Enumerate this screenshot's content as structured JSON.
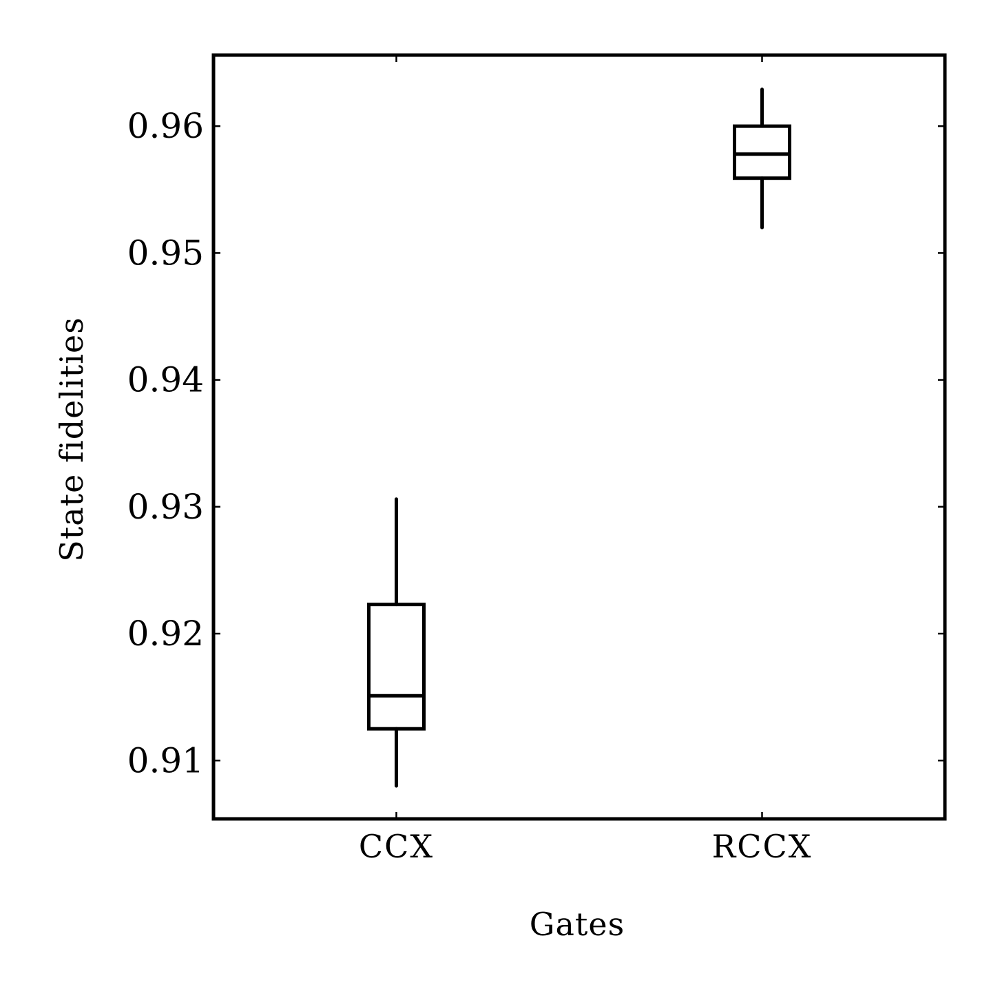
{
  "chart_data": {
    "type": "boxplot",
    "title": "",
    "xlabel": "Gates",
    "ylabel": "State fidelities",
    "categories": [
      "CCX",
      "RCCX"
    ],
    "boxes": [
      {
        "category": "CCX",
        "whisker_low": 0.908,
        "q1": 0.9125,
        "median": 0.9151,
        "q3": 0.9223,
        "whisker_high": 0.9306
      },
      {
        "category": "RCCX",
        "whisker_low": 0.952,
        "q1": 0.9559,
        "median": 0.9578,
        "q3": 0.96,
        "whisker_high": 0.9629
      }
    ],
    "yticks": [
      0.91,
      0.92,
      0.93,
      0.94,
      0.95,
      0.96
    ],
    "ytick_labels": [
      "0.91",
      "0.92",
      "0.93",
      "0.94",
      "0.95",
      "0.96"
    ],
    "ylim": [
      0.9054,
      0.9656
    ],
    "grid": false,
    "legend": "none",
    "color": "#000000"
  }
}
